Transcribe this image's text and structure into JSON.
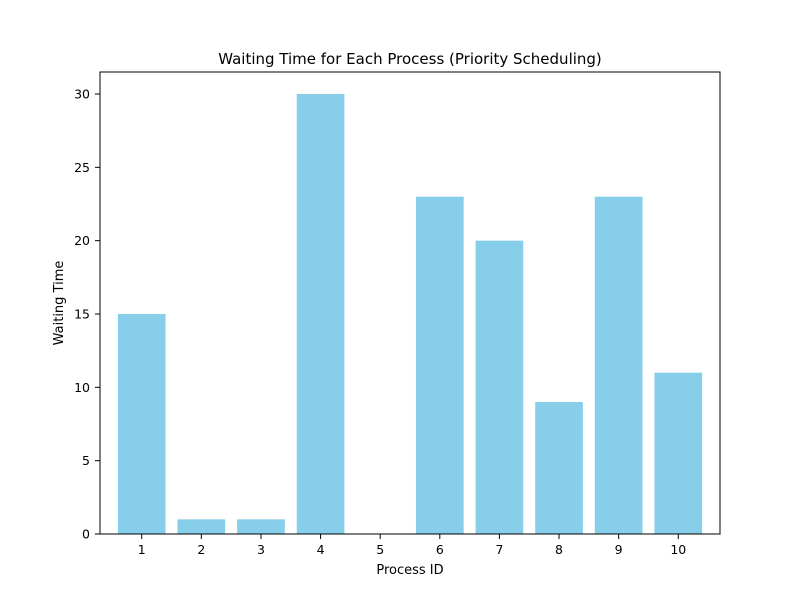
{
  "chart_data": {
    "type": "bar",
    "title": "Waiting Time for Each Process (Priority Scheduling)",
    "xlabel": "Process ID",
    "ylabel": "Waiting Time",
    "categories": [
      "1",
      "2",
      "3",
      "4",
      "5",
      "6",
      "7",
      "8",
      "9",
      "10"
    ],
    "values": [
      15,
      1,
      1,
      30,
      0,
      23,
      20,
      9,
      23,
      11
    ],
    "ylim": [
      0,
      31.5
    ],
    "yticks": [
      "0",
      "5",
      "10",
      "15",
      "20",
      "25",
      "30"
    ],
    "grid": false,
    "legend": "none",
    "bar_color": "#87CEEB",
    "axis_color": "#000000"
  }
}
